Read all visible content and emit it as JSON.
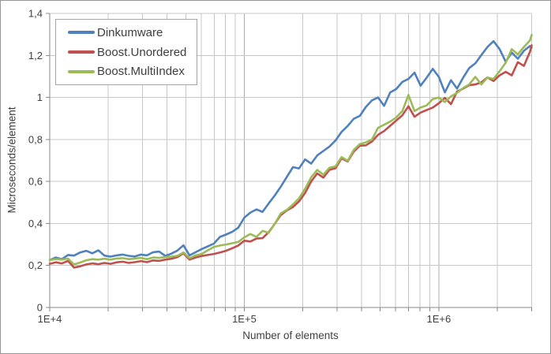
{
  "figure": {
    "background": "#FFFFFF",
    "border_color": "#979797",
    "text_color": "#404040",
    "grid_color": "#C7C7C7",
    "major_grid_color": "#ADADAD",
    "axis_color": "#8A8A8A"
  },
  "legend": {
    "position": "top-left",
    "border_color": "#A6A6A6"
  },
  "chart_data": {
    "type": "line",
    "title": "",
    "xlabel": "Number of elements",
    "ylabel": "Microseconds/element",
    "x_scale": "log",
    "x_range": [
      10000,
      3000000
    ],
    "y_range": [
      0,
      1.4
    ],
    "grid": {
      "horizontal": true,
      "vertical_minor_log": true,
      "legend_position": "top-left"
    },
    "x_ticks": [
      {
        "v": 10000,
        "label": "1E+4"
      },
      {
        "v": 100000,
        "label": "1E+5"
      },
      {
        "v": 1000000,
        "label": "1E+6"
      }
    ],
    "y_ticks": [
      {
        "v": 0,
        "label": "0"
      },
      {
        "v": 0.2,
        "label": "0,2"
      },
      {
        "v": 0.4,
        "label": "0,4"
      },
      {
        "v": 0.6,
        "label": "0,6"
      },
      {
        "v": 0.8,
        "label": "0,8"
      },
      {
        "v": 1,
        "label": "1"
      },
      {
        "v": 1.2,
        "label": "1,2"
      },
      {
        "v": 1.4,
        "label": "1,4"
      }
    ],
    "x_values": [
      10000,
      10746,
      11548,
      12409,
      13335,
      14330,
      15399,
      16548,
      17783,
      19110,
      20535,
      22067,
      23714,
      25483,
      27384,
      29427,
      31623,
      33982,
      36517,
      39242,
      42170,
      45316,
      48697,
      52330,
      56234,
      60430,
      64938,
      69783,
      74989,
      80584,
      86596,
      93057,
      100000,
      107461,
      115478,
      124094,
      133352,
      143301,
      153993,
      165482,
      177828,
      191095,
      205353,
      220673,
      237137,
      254830,
      273842,
      294273,
      316228,
      339821,
      365174,
      392419,
      421697,
      453158,
      486968,
      523299,
      562341,
      604296,
      649382,
      697831,
      749894,
      805842,
      865964,
      930572,
      1000000,
      1074608,
      1154782,
      1240938,
      1333521,
      1433013,
      1539927,
      1654817,
      1778279,
      1910953,
      2053525,
      2206734,
      2371374,
      2548297,
      2738420,
      2942727,
      3000000
    ],
    "series": [
      {
        "name": "Dinkumware",
        "color": "#4F81BD",
        "values": [
          0.226,
          0.238,
          0.23,
          0.25,
          0.247,
          0.262,
          0.27,
          0.258,
          0.272,
          0.247,
          0.242,
          0.248,
          0.252,
          0.246,
          0.243,
          0.252,
          0.248,
          0.263,
          0.266,
          0.246,
          0.256,
          0.271,
          0.296,
          0.248,
          0.263,
          0.278,
          0.291,
          0.304,
          0.336,
          0.347,
          0.36,
          0.38,
          0.428,
          0.452,
          0.467,
          0.455,
          0.495,
          0.533,
          0.575,
          0.622,
          0.668,
          0.662,
          0.705,
          0.685,
          0.724,
          0.745,
          0.766,
          0.795,
          0.836,
          0.864,
          0.898,
          0.912,
          0.955,
          0.986,
          1.0,
          0.96,
          1.024,
          1.04,
          1.074,
          1.088,
          1.118,
          1.056,
          1.094,
          1.136,
          1.098,
          1.024,
          1.082,
          1.042,
          1.094,
          1.14,
          1.162,
          1.202,
          1.24,
          1.268,
          1.23,
          1.17,
          1.214,
          1.184,
          1.222,
          1.245,
          1.238
        ]
      },
      {
        "name": "Boost.Unordered",
        "color": "#C0504D",
        "values": [
          0.208,
          0.215,
          0.21,
          0.222,
          0.19,
          0.196,
          0.205,
          0.21,
          0.206,
          0.212,
          0.208,
          0.215,
          0.218,
          0.212,
          0.216,
          0.221,
          0.216,
          0.224,
          0.222,
          0.228,
          0.232,
          0.24,
          0.258,
          0.228,
          0.238,
          0.245,
          0.25,
          0.255,
          0.262,
          0.27,
          0.282,
          0.295,
          0.318,
          0.314,
          0.328,
          0.33,
          0.358,
          0.398,
          0.44,
          0.462,
          0.478,
          0.505,
          0.545,
          0.6,
          0.638,
          0.618,
          0.655,
          0.663,
          0.71,
          0.695,
          0.742,
          0.77,
          0.772,
          0.79,
          0.822,
          0.84,
          0.865,
          0.89,
          0.915,
          0.958,
          0.908,
          0.928,
          0.94,
          0.952,
          0.972,
          0.998,
          0.968,
          1.028,
          1.042,
          1.058,
          1.062,
          1.072,
          1.095,
          1.078,
          1.105,
          1.122,
          1.105,
          1.168,
          1.15,
          1.218,
          1.248
        ]
      },
      {
        "name": "Boost.MultiIndex",
        "color": "#9BBB59",
        "values": [
          0.226,
          0.23,
          0.228,
          0.233,
          0.205,
          0.214,
          0.225,
          0.23,
          0.228,
          0.232,
          0.228,
          0.233,
          0.235,
          0.23,
          0.233,
          0.236,
          0.23,
          0.238,
          0.236,
          0.24,
          0.242,
          0.246,
          0.262,
          0.235,
          0.248,
          0.255,
          0.272,
          0.288,
          0.295,
          0.3,
          0.306,
          0.312,
          0.334,
          0.35,
          0.336,
          0.365,
          0.355,
          0.398,
          0.448,
          0.465,
          0.49,
          0.52,
          0.565,
          0.62,
          0.655,
          0.632,
          0.665,
          0.672,
          0.716,
          0.698,
          0.75,
          0.778,
          0.786,
          0.8,
          0.855,
          0.87,
          0.885,
          0.905,
          0.935,
          1.012,
          0.935,
          0.952,
          0.962,
          0.992,
          1.0,
          0.978,
          1.005,
          1.022,
          1.045,
          1.062,
          1.098,
          1.062,
          1.095,
          1.088,
          1.125,
          1.165,
          1.23,
          1.205,
          1.24,
          1.272,
          1.298
        ]
      }
    ]
  }
}
